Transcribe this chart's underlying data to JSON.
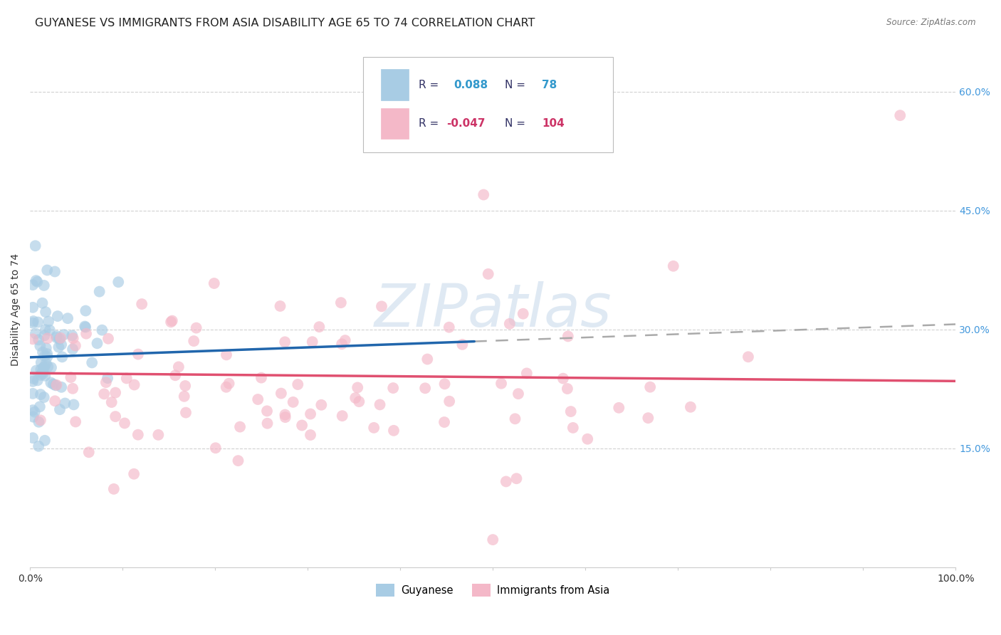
{
  "title": "GUYANESE VS IMMIGRANTS FROM ASIA DISABILITY AGE 65 TO 74 CORRELATION CHART",
  "source": "Source: ZipAtlas.com",
  "ylabel": "Disability Age 65 to 74",
  "xlim": [
    0.0,
    1.0
  ],
  "ylim": [
    0.0,
    0.65
  ],
  "yticks": [
    0.15,
    0.3,
    0.45,
    0.6
  ],
  "ytick_labels": [
    "15.0%",
    "30.0%",
    "45.0%",
    "60.0%"
  ],
  "watermark": "ZIPatlas",
  "blue_color": "#a8cce4",
  "blue_line_color": "#2166ac",
  "pink_color": "#f4b8c8",
  "pink_line_color": "#e05070",
  "dash_line_color": "#aaaaaa",
  "grid_color": "#cccccc",
  "background_color": "#ffffff",
  "title_fontsize": 11.5,
  "axis_label_fontsize": 10,
  "tick_fontsize": 10,
  "legend_text_color_blue": "#3399cc",
  "legend_text_color_pink": "#cc3366",
  "legend_text_color_dark": "#333366"
}
